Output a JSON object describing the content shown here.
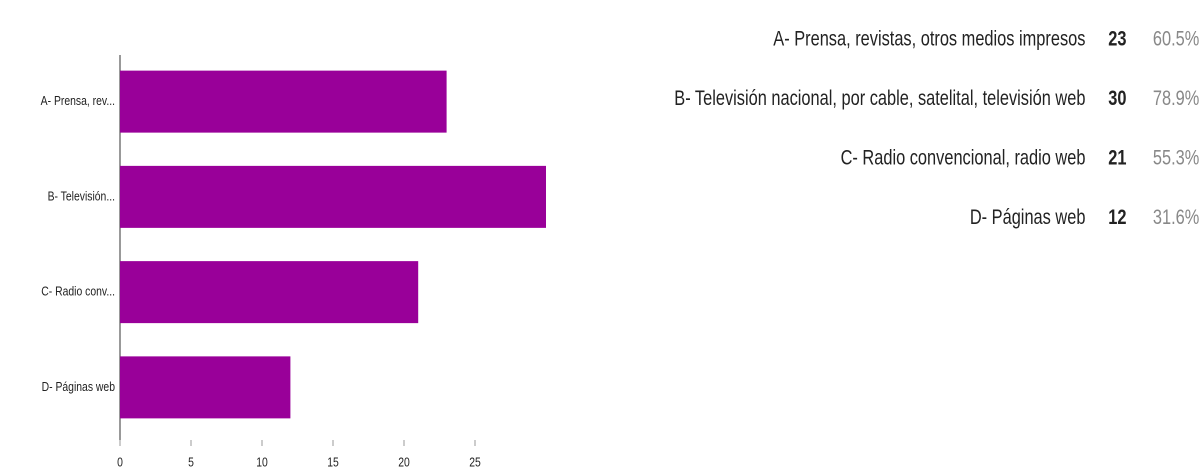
{
  "chart_data": {
    "type": "barh",
    "categories": [
      "A- Prensa, rev...",
      "B- Televisión...",
      "C- Radio conv...",
      "D- Páginas web"
    ],
    "values": [
      23,
      30,
      21,
      12
    ],
    "color": "#990099",
    "xlim": [
      0,
      30
    ],
    "xticks": [
      0,
      5,
      10,
      15,
      20,
      25
    ],
    "grid": false
  },
  "summary": {
    "labels": [
      "A- Prensa, revistas, otros medios impresos",
      "B- Televisión nacional, por cable, satelital, televisión web",
      "C- Radio convencional, radio web",
      "D- Páginas web"
    ],
    "counts": [
      "23",
      "30",
      "21",
      "12"
    ],
    "percents": [
      "60.5%",
      "78.9%",
      "55.3%",
      "31.6%"
    ]
  }
}
